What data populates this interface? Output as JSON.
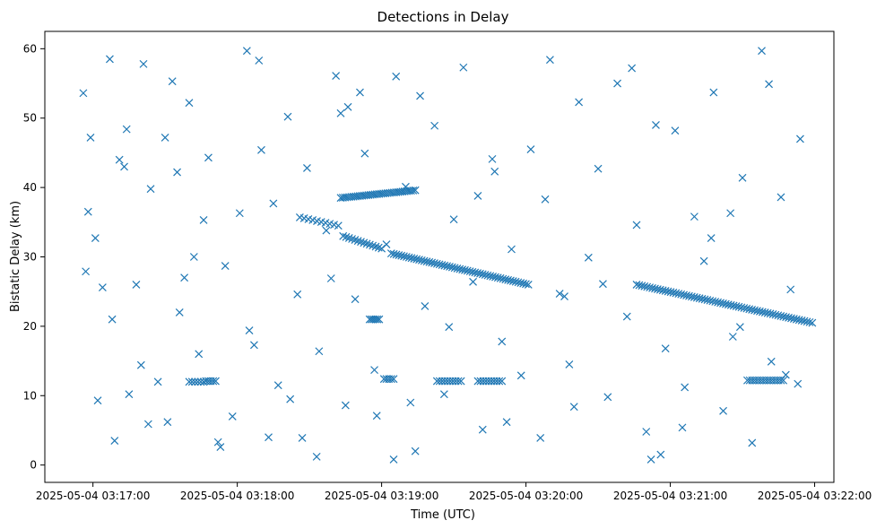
{
  "chart_data": {
    "type": "scatter",
    "title": "Detections in Delay",
    "xlabel": "Time (UTC)",
    "ylabel": "Bistatic Delay (km)",
    "x_ticks": [
      "2025-05-04 03:17:00",
      "2025-05-04 03:18:00",
      "2025-05-04 03:19:00",
      "2025-05-04 03:20:00",
      "2025-05-04 03:21:00",
      "2025-05-04 03:22:00"
    ],
    "y_ticks": [
      0,
      10,
      20,
      30,
      40,
      50,
      60
    ],
    "xlim": [
      "2025-05-04 03:16:40",
      "2025-05-04 03:22:08"
    ],
    "ylim": [
      -2.5,
      62.5
    ],
    "marker": "x",
    "color": "#1f77b4",
    "grid": false,
    "x": [
      "03:16:56",
      "03:16:58",
      "03:17:01",
      "03:16:57",
      "03:17:04",
      "03:17:07",
      "03:16:59",
      "03:17:02",
      "03:17:09",
      "03:17:13",
      "03:17:08",
      "03:17:15",
      "03:17:21",
      "03:17:18",
      "03:17:24",
      "03:17:30",
      "03:17:27",
      "03:17:33",
      "03:17:36",
      "03:17:40",
      "03:17:44",
      "03:17:48",
      "03:17:52",
      "03:17:55",
      "03:17:58",
      "03:17:14",
      "03:17:23",
      "03:17:35",
      "03:17:46",
      "03:17:20",
      "03:17:31",
      "03:17:42",
      "03:17:53",
      "03:18:01",
      "03:18:05",
      "03:18:09",
      "03:18:13",
      "03:18:17",
      "03:18:21",
      "03:18:25",
      "03:18:29",
      "03:18:33",
      "03:18:37",
      "03:18:41",
      "03:18:45",
      "03:18:49",
      "03:18:53",
      "03:18:57",
      "03:18:04",
      "03:18:15",
      "03:18:27",
      "03:18:39",
      "03:18:51",
      "03:18:10",
      "03:18:22",
      "03:18:34",
      "03:18:46",
      "03:18:58",
      "03:19:02",
      "03:19:06",
      "03:19:10",
      "03:19:14",
      "03:19:18",
      "03:19:22",
      "03:19:26",
      "03:19:30",
      "03:19:34",
      "03:19:38",
      "03:19:42",
      "03:19:46",
      "03:19:50",
      "03:19:54",
      "03:19:58",
      "03:19:05",
      "03:19:16",
      "03:19:28",
      "03:19:40",
      "03:19:52",
      "03:20:02",
      "03:20:06",
      "03:20:10",
      "03:20:14",
      "03:20:18",
      "03:20:22",
      "03:20:26",
      "03:20:30",
      "03:20:34",
      "03:20:38",
      "03:20:42",
      "03:20:46",
      "03:20:50",
      "03:20:54",
      "03:20:58",
      "03:20:08",
      "03:20:20",
      "03:20:32",
      "03:20:44",
      "03:20:56",
      "03:21:02",
      "03:21:06",
      "03:21:10",
      "03:21:14",
      "03:21:18",
      "03:21:22",
      "03:21:26",
      "03:21:30",
      "03:21:34",
      "03:21:38",
      "03:21:42",
      "03:21:46",
      "03:21:50",
      "03:21:54",
      "03:21:05",
      "03:21:17",
      "03:21:29",
      "03:21:41",
      "03:21:53",
      "03:17:11",
      "03:17:38",
      "03:18:07",
      "03:18:43",
      "03:19:12",
      "03:19:47",
      "03:20:16",
      "03:20:52",
      "03:21:25",
      "03:21:48"
    ],
    "y": [
      53.6,
      36.5,
      32.7,
      27.9,
      25.6,
      58.5,
      47.2,
      9.3,
      3.5,
      43.0,
      21.0,
      10.2,
      57.8,
      26.0,
      39.8,
      47.2,
      12.0,
      55.3,
      22.0,
      52.2,
      16.0,
      44.3,
      3.3,
      28.7,
      7.0,
      48.4,
      5.9,
      42.2,
      35.3,
      14.4,
      6.2,
      30.0,
      2.6,
      36.3,
      19.4,
      58.3,
      4.0,
      11.5,
      50.2,
      24.6,
      42.8,
      1.2,
      33.8,
      56.1,
      8.6,
      23.9,
      44.9,
      13.7,
      59.7,
      37.7,
      3.9,
      26.9,
      53.7,
      45.4,
      9.5,
      16.4,
      51.6,
      7.1,
      31.8,
      56.0,
      40.1,
      2.0,
      22.9,
      48.9,
      10.2,
      35.4,
      57.3,
      26.4,
      5.1,
      44.1,
      17.8,
      31.1,
      12.9,
      0.8,
      53.2,
      19.9,
      38.8,
      6.2,
      45.5,
      3.9,
      58.4,
      24.7,
      14.5,
      52.3,
      29.9,
      42.7,
      9.8,
      55.0,
      21.4,
      34.6,
      4.8,
      49.0,
      16.8,
      38.3,
      8.4,
      26.1,
      57.2,
      1.5,
      48.2,
      11.2,
      35.8,
      29.4,
      53.7,
      7.8,
      18.5,
      41.4,
      3.2,
      59.7,
      14.9,
      38.6,
      25.3,
      47.0,
      5.4,
      32.7,
      19.9,
      54.9,
      11.7,
      44.0,
      27.0,
      17.3,
      50.7,
      9.0,
      42.3,
      24.3,
      0.8,
      36.3,
      13.0
    ]
  },
  "tracks": [
    {
      "x0": "03:17:40",
      "x1": "03:17:46",
      "y0": 12.0,
      "y1": 12.0,
      "n": 6
    },
    {
      "x0": "03:17:47",
      "x1": "03:17:51",
      "y0": 12.1,
      "y1": 12.1,
      "n": 5
    },
    {
      "x0": "03:18:26",
      "x1": "03:18:42",
      "y0": 35.7,
      "y1": 34.5,
      "n": 10
    },
    {
      "x0": "03:18:43",
      "x1": "03:19:14",
      "y0": 38.5,
      "y1": 39.6,
      "n": 36
    },
    {
      "x0": "03:18:44",
      "x1": "03:19:00",
      "y0": 33.0,
      "y1": 31.2,
      "n": 14
    },
    {
      "x0": "03:19:04",
      "x1": "03:20:01",
      "y0": 30.5,
      "y1": 26.0,
      "n": 55
    },
    {
      "x0": "03:18:55",
      "x1": "03:18:59",
      "y0": 21.0,
      "y1": 21.0,
      "n": 6
    },
    {
      "x0": "03:19:01",
      "x1": "03:19:05",
      "y0": 12.4,
      "y1": 12.4,
      "n": 5
    },
    {
      "x0": "03:19:23",
      "x1": "03:19:33",
      "y0": 12.1,
      "y1": 12.1,
      "n": 10
    },
    {
      "x0": "03:19:40",
      "x1": "03:19:50",
      "y0": 12.1,
      "y1": 12.1,
      "n": 10
    },
    {
      "x0": "03:20:46",
      "x1": "03:21:59",
      "y0": 26.0,
      "y1": 20.5,
      "n": 68
    },
    {
      "x0": "03:21:32",
      "x1": "03:21:47",
      "y0": 12.2,
      "y1": 12.2,
      "n": 16
    }
  ]
}
